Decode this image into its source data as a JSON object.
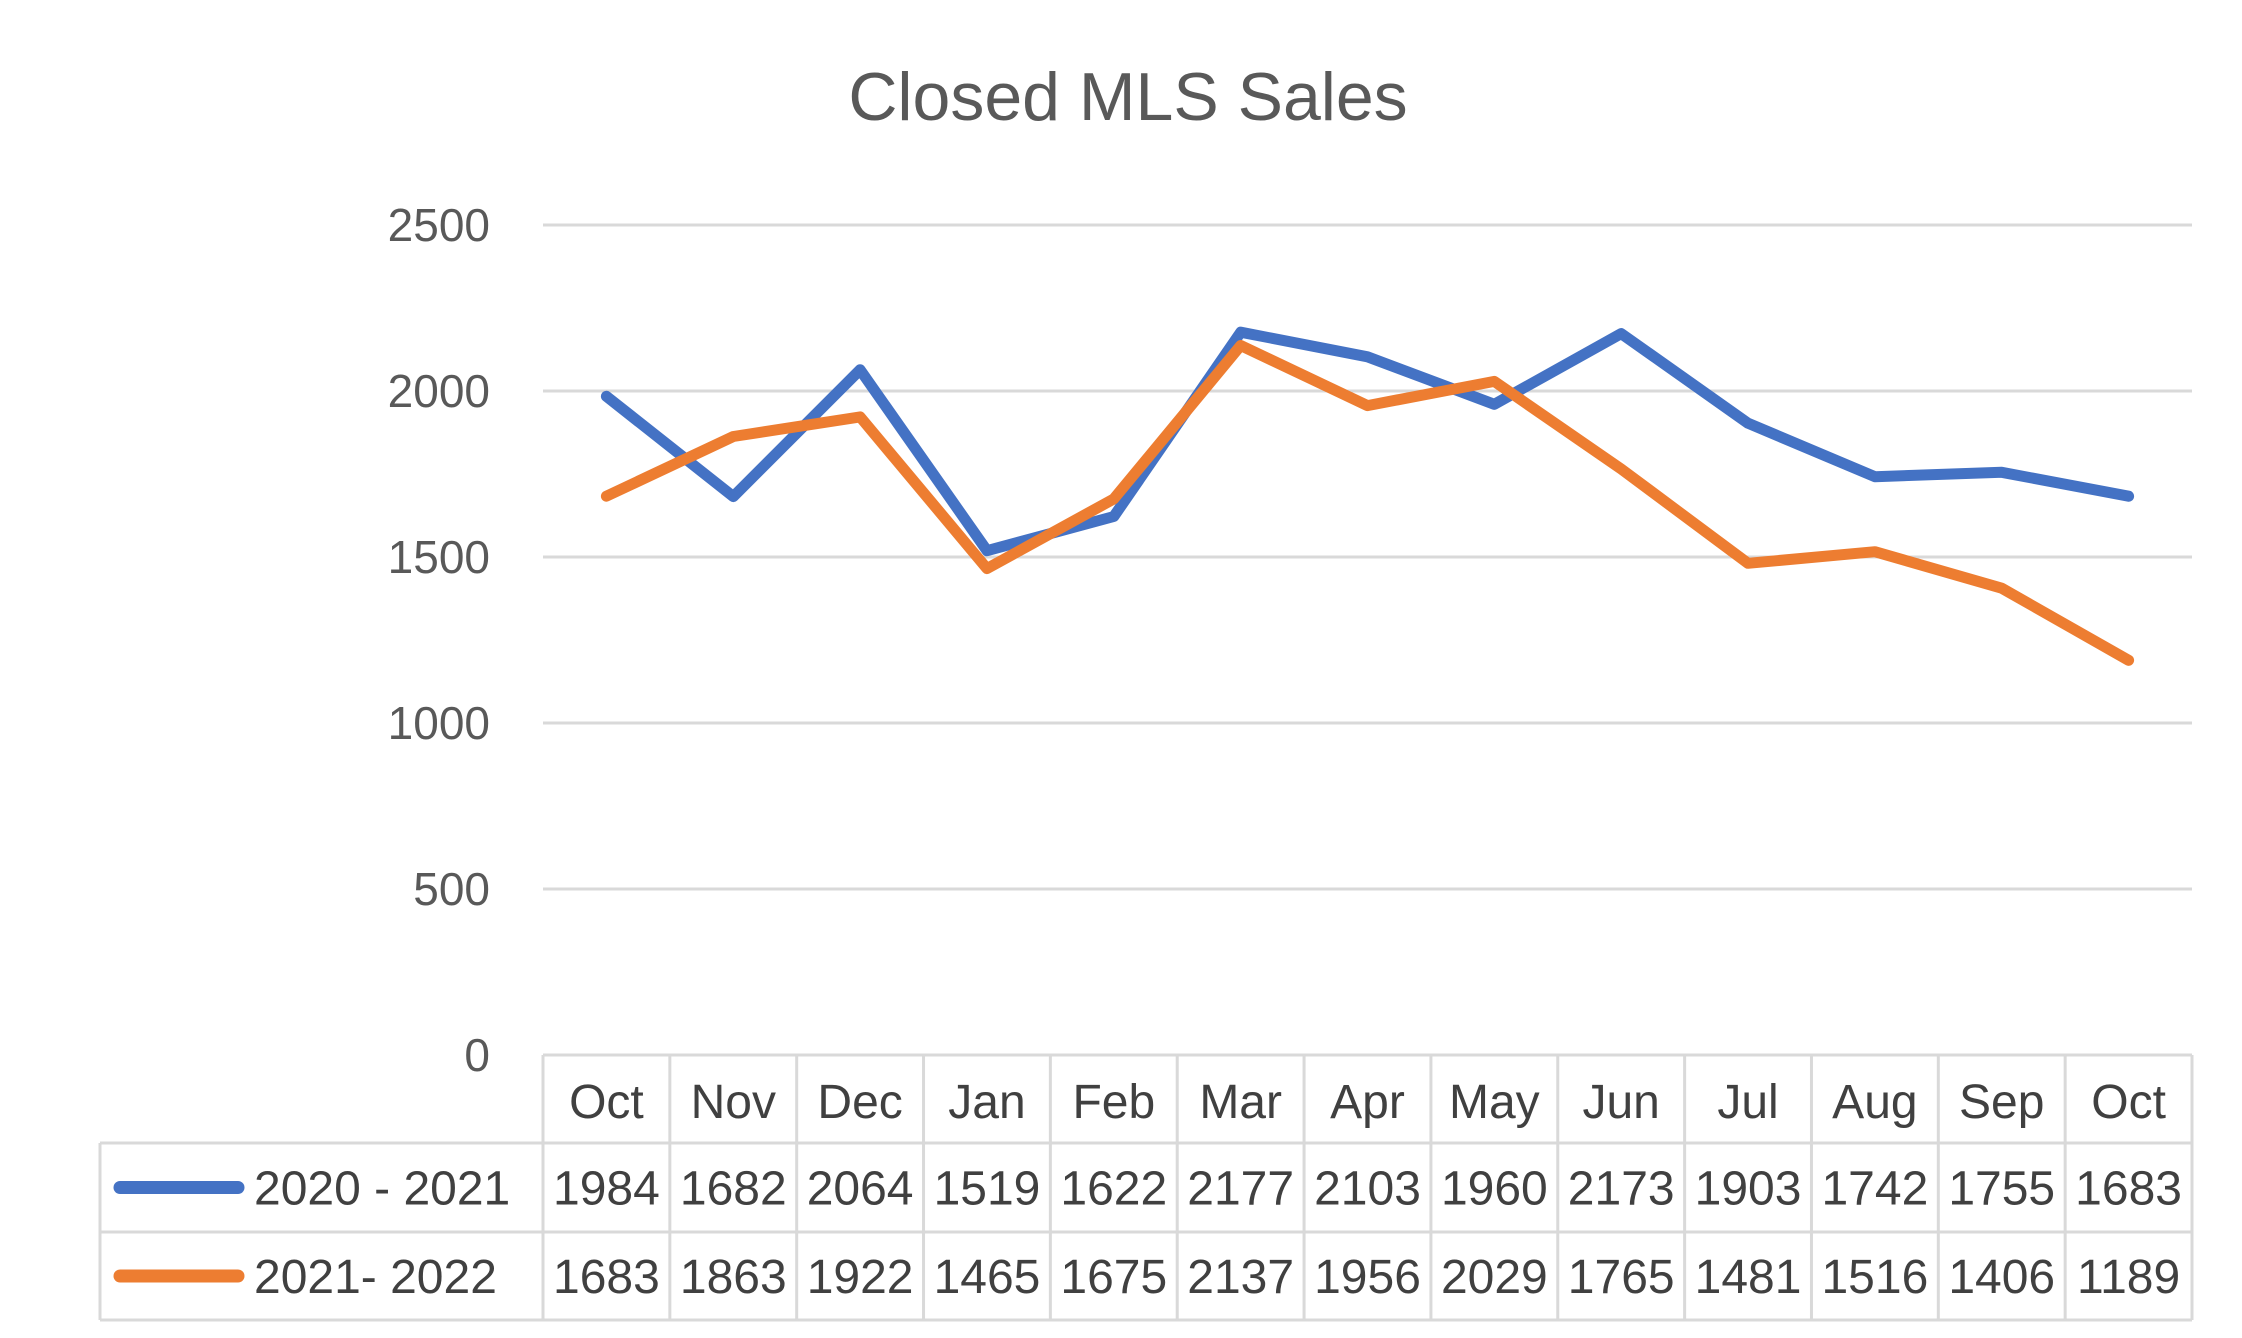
{
  "chart_data": {
    "type": "line",
    "title": "Closed MLS Sales",
    "categories": [
      "Oct",
      "Nov",
      "Dec",
      "Jan",
      "Feb",
      "Mar",
      "Apr",
      "May",
      "Jun",
      "Jul",
      "Aug",
      "Sep",
      "Oct"
    ],
    "ylim": [
      0,
      2500
    ],
    "yticks": [
      "0",
      "500",
      "1000",
      "1500",
      "2000",
      "2500"
    ],
    "grid": true,
    "legend": "data-table",
    "series": [
      {
        "name": "2020 - 2021",
        "color": "#4472c4",
        "values": [
          1984,
          1682,
          2064,
          1519,
          1622,
          2177,
          2103,
          1960,
          2173,
          1903,
          1742,
          1755,
          1683
        ]
      },
      {
        "name": "2021- 2022",
        "color": "#ed7d31",
        "values": [
          1683,
          1863,
          1922,
          1465,
          1675,
          2137,
          1956,
          2029,
          1765,
          1481,
          1516,
          1406,
          1189
        ]
      }
    ]
  }
}
